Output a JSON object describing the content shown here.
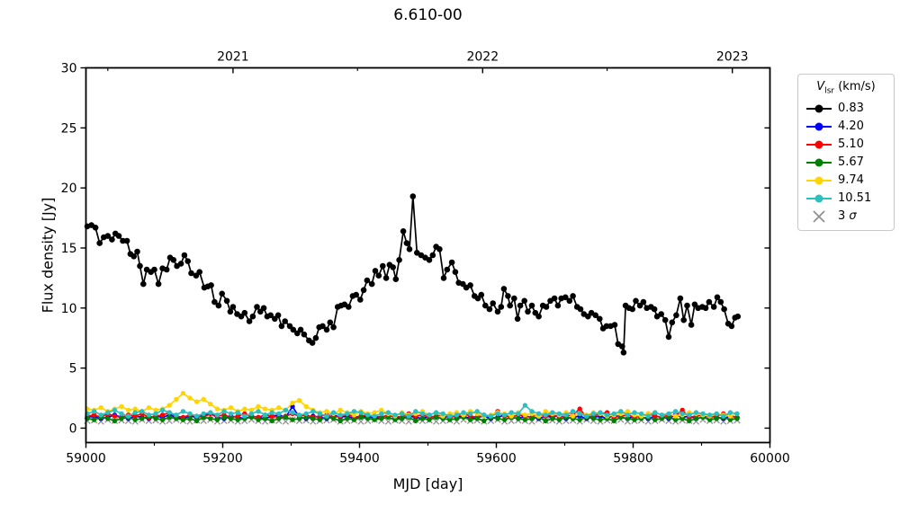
{
  "chart_data": {
    "type": "line",
    "title": "6.610-00",
    "xlabel": "MJD [day]",
    "ylabel": "Flux density [Jy]",
    "xlim": [
      59000,
      60000
    ],
    "ylim": [
      -1.2,
      30
    ],
    "grid": false,
    "x_ticks": [
      59000,
      59200,
      59400,
      59600,
      59800,
      60000
    ],
    "x_minor_ticks": [
      59100,
      59300,
      59500,
      59700,
      59900
    ],
    "y_ticks": [
      0,
      5,
      10,
      15,
      20,
      25,
      30
    ],
    "top_axis_ticks": [
      {
        "x": 59215,
        "label": "2021"
      },
      {
        "x": 59580,
        "label": "2022"
      },
      {
        "x": 59945,
        "label": "2023"
      }
    ],
    "top_axis_minor_ticks": [
      59032,
      59397,
      59762
    ],
    "legend": {
      "position": "outside-right",
      "title_var": "V",
      "title_sub": "lsr",
      "title_unit": "(km/s)",
      "sigma_prefix": "3 ",
      "sigma_symbol": "σ"
    },
    "series": [
      {
        "label": "0.83",
        "color": "#000000",
        "marker": "circle",
        "line": true,
        "z": 6,
        "x": [
          59002,
          59008,
          59014,
          59020,
          59026,
          59032,
          59038,
          59043,
          59048,
          59054,
          59060,
          59065,
          59070,
          59075,
          59079,
          59084,
          59089,
          59095,
          59100,
          59106,
          59112,
          59118,
          59123,
          59128,
          59133,
          59139,
          59144,
          59149,
          59154,
          59161,
          59166,
          59173,
          59178,
          59183,
          59188,
          59194,
          59199,
          59206,
          59211,
          59215,
          59221,
          59227,
          59232,
          59239,
          59244,
          59250,
          59255,
          59260,
          59265,
          59270,
          59276,
          59281,
          59286,
          59291,
          59298,
          59303,
          59309,
          59314,
          59319,
          59326,
          59331,
          59336,
          59341,
          59346,
          59352,
          59357,
          59362,
          59368,
          59373,
          59378,
          59384,
          59390,
          59395,
          59401,
          59406,
          59411,
          59418,
          59423,
          59428,
          59434,
          59439,
          59444,
          59449,
          59453,
          59458,
          59464,
          59469,
          59473,
          59478,
          59484,
          59490,
          59496,
          59502,
          59507,
          59512,
          59517,
          59523,
          59528,
          59535,
          59540,
          59545,
          59551,
          59556,
          59562,
          59568,
          59573,
          59578,
          59584,
          59590,
          59595,
          59602,
          59607,
          59611,
          59617,
          59620,
          59626,
          59631,
          59635,
          59641,
          59646,
          59652,
          59657,
          59662,
          59668,
          59673,
          59679,
          59685,
          59690,
          59695,
          59701,
          59707,
          59712,
          59718,
          59723,
          59728,
          59734,
          59739,
          59745,
          59751,
          59756,
          59761,
          59767,
          59773,
          59778,
          59784,
          59786,
          59789,
          59794,
          59799,
          59804,
          59810,
          59815,
          59820,
          59826,
          59831,
          59835,
          59841,
          59847,
          59852,
          59857,
          59863,
          59869,
          59874,
          59879,
          59885,
          59890,
          59895,
          59901,
          59906,
          59911,
          59918,
          59923,
          59928,
          59933,
          59939,
          59944,
          59949,
          59953
        ],
        "y": [
          16.8,
          16.9,
          16.7,
          15.4,
          15.9,
          16.0,
          15.7,
          16.2,
          16.0,
          15.6,
          15.6,
          14.5,
          14.3,
          14.7,
          13.5,
          12.0,
          13.2,
          13.0,
          13.2,
          12.0,
          13.3,
          13.2,
          14.2,
          14.0,
          13.5,
          13.7,
          14.4,
          13.9,
          12.9,
          12.7,
          13.0,
          11.7,
          11.8,
          11.9,
          10.5,
          10.2,
          11.2,
          10.6,
          9.7,
          10.1,
          9.5,
          9.3,
          9.6,
          8.9,
          9.3,
          10.1,
          9.7,
          10.0,
          9.3,
          9.4,
          9.1,
          9.4,
          8.5,
          8.9,
          8.5,
          8.2,
          7.9,
          8.2,
          7.8,
          7.3,
          7.1,
          7.5,
          8.4,
          8.5,
          8.2,
          8.8,
          8.4,
          10.1,
          10.2,
          10.3,
          10.1,
          11.0,
          11.1,
          10.7,
          11.5,
          12.3,
          12.0,
          13.1,
          12.7,
          13.5,
          12.5,
          13.6,
          13.4,
          12.4,
          14.0,
          16.4,
          15.4,
          14.9,
          19.3,
          14.6,
          14.4,
          14.2,
          14.0,
          14.4,
          15.1,
          14.9,
          12.5,
          13.2,
          13.8,
          13.0,
          12.1,
          12.0,
          11.7,
          11.9,
          11.0,
          10.8,
          11.1,
          10.2,
          9.9,
          10.4,
          9.7,
          10.1,
          11.6,
          11.0,
          10.2,
          10.8,
          9.1,
          10.2,
          10.6,
          9.7,
          10.2,
          9.6,
          9.3,
          10.2,
          10.1,
          10.6,
          10.8,
          10.2,
          10.8,
          10.9,
          10.6,
          11.0,
          10.1,
          9.9,
          9.5,
          9.3,
          9.6,
          9.4,
          9.1,
          8.3,
          8.5,
          8.5,
          8.6,
          7.0,
          6.8,
          6.3,
          10.2,
          10.0,
          9.9,
          10.6,
          10.2,
          10.5,
          10.0,
          10.1,
          9.9,
          9.3,
          9.5,
          9.0,
          7.6,
          8.8,
          9.4,
          10.8,
          9.0,
          10.2,
          8.6,
          10.3,
          10.0,
          10.1,
          10.0,
          10.5,
          10.1,
          10.9,
          10.5,
          9.9,
          8.7,
          8.5,
          9.2,
          9.3
        ]
      },
      {
        "label": "4.20",
        "color": "#0000ff",
        "marker": "circle",
        "line": true,
        "z": 1,
        "x_start": 59002,
        "x_step": 10,
        "y": [
          0.9,
          1.0,
          0.8,
          0.9,
          1.1,
          0.9,
          0.8,
          1.0,
          0.9,
          0.8,
          1.0,
          0.9,
          1.1,
          0.9,
          0.8,
          1.0,
          0.9,
          1.1,
          1.2,
          0.9,
          0.8,
          1.0,
          0.9,
          0.8,
          1.0,
          0.9,
          0.8,
          1.0,
          1.1,
          0.9,
          1.8,
          0.9,
          0.8,
          1.0,
          0.9,
          0.8,
          1.1,
          0.9,
          1.0,
          0.8,
          0.9,
          1.0,
          0.8,
          0.9,
          1.1,
          0.9,
          0.8,
          1.0,
          0.9,
          0.8,
          1.0,
          0.9,
          0.8,
          1.1,
          0.9,
          1.0,
          0.8,
          0.9,
          1.0,
          0.8,
          0.9,
          1.1,
          0.9,
          0.8,
          1.0,
          0.9,
          0.8,
          1.0,
          0.9,
          1.1,
          0.8,
          0.9,
          1.0,
          0.8,
          0.9,
          1.0,
          0.8,
          1.1,
          0.9,
          0.8,
          1.0,
          0.9,
          0.8,
          1.0,
          0.9,
          0.8,
          1.1,
          0.9,
          1.0,
          0.8,
          0.9,
          1.0,
          0.9,
          0.8,
          1.0,
          0.9
        ]
      },
      {
        "label": "5.10",
        "color": "#ff0000",
        "marker": "circle",
        "line": true,
        "z": 2,
        "x_start": 59002,
        "x_step": 10,
        "y": [
          1.0,
          1.1,
          0.9,
          1.2,
          1.0,
          0.9,
          1.1,
          1.0,
          1.2,
          0.9,
          1.0,
          1.1,
          1.3,
          1.0,
          0.9,
          1.1,
          1.0,
          0.9,
          1.2,
          1.0,
          1.1,
          0.9,
          1.0,
          1.2,
          1.0,
          0.9,
          1.1,
          1.0,
          0.9,
          1.0,
          1.2,
          1.0,
          1.1,
          0.9,
          1.0,
          1.1,
          0.9,
          1.0,
          1.2,
          0.9,
          1.0,
          1.1,
          1.0,
          0.9,
          1.1,
          1.0,
          0.9,
          1.2,
          1.0,
          1.1,
          0.9,
          1.0,
          1.1,
          0.9,
          1.0,
          1.2,
          1.0,
          0.9,
          1.1,
          1.0,
          1.4,
          1.0,
          0.9,
          1.1,
          1.0,
          0.9,
          1.2,
          1.0,
          1.1,
          0.9,
          1.0,
          1.1,
          1.6,
          0.9,
          1.0,
          1.2,
          1.3,
          0.9,
          1.0,
          1.1,
          0.9,
          1.0,
          1.2,
          1.0,
          0.9,
          1.1,
          1.0,
          1.5,
          0.9,
          1.0,
          1.1,
          0.9,
          1.0,
          1.2,
          1.0,
          0.9
        ]
      },
      {
        "label": "5.67",
        "color": "#008000",
        "marker": "circle",
        "line": true,
        "z": 3,
        "x_start": 59002,
        "x_step": 10,
        "y": [
          0.8,
          0.7,
          0.9,
          0.8,
          0.6,
          0.8,
          0.9,
          0.7,
          0.8,
          1.0,
          0.8,
          0.7,
          0.9,
          0.8,
          0.7,
          0.8,
          0.6,
          0.9,
          0.8,
          0.7,
          0.9,
          0.8,
          0.7,
          0.8,
          0.9,
          0.7,
          0.8,
          0.6,
          0.8,
          0.9,
          0.7,
          0.8,
          0.9,
          0.8,
          0.7,
          0.9,
          0.8,
          0.6,
          0.8,
          0.7,
          0.9,
          0.8,
          0.7,
          0.8,
          0.9,
          0.7,
          0.8,
          0.9,
          0.6,
          0.8,
          0.7,
          0.9,
          0.8,
          0.7,
          0.8,
          0.9,
          0.7,
          0.8,
          0.6,
          0.9,
          0.8,
          0.7,
          0.9,
          0.8,
          0.7,
          0.8,
          0.9,
          0.6,
          0.8,
          0.7,
          0.9,
          0.8,
          0.7,
          0.9,
          0.8,
          0.7,
          0.8,
          0.6,
          0.9,
          0.8,
          0.7,
          0.8,
          0.9,
          0.7,
          0.8,
          0.9,
          0.7,
          0.8,
          0.6,
          0.8,
          0.9,
          0.7,
          0.8,
          0.9,
          0.7,
          0.8
        ]
      },
      {
        "label": "9.74",
        "color": "#ffd400",
        "marker": "circle",
        "line": true,
        "z": 4,
        "x_start": 59002,
        "x_step": 10,
        "y": [
          1.6,
          1.5,
          1.7,
          1.4,
          1.6,
          1.8,
          1.5,
          1.6,
          1.4,
          1.7,
          1.5,
          1.6,
          1.9,
          2.4,
          2.9,
          2.5,
          2.2,
          2.4,
          2.0,
          1.6,
          1.5,
          1.7,
          1.4,
          1.6,
          1.5,
          1.8,
          1.6,
          1.5,
          1.7,
          1.5,
          2.1,
          2.3,
          1.8,
          1.5,
          1.3,
          1.4,
          1.2,
          1.5,
          1.3,
          1.1,
          1.4,
          1.2,
          1.3,
          1.5,
          1.2,
          1.0,
          1.3,
          1.1,
          1.2,
          1.4,
          1.1,
          1.3,
          1.0,
          1.2,
          1.3,
          1.1,
          1.4,
          1.2,
          1.0,
          1.1,
          1.3,
          1.2,
          1.0,
          1.3,
          1.1,
          1.2,
          1.0,
          1.4,
          1.2,
          1.1,
          1.3,
          1.0,
          1.2,
          1.1,
          1.3,
          1.2,
          1.0,
          1.1,
          1.2,
          1.4,
          1.1,
          1.0,
          1.2,
          1.3,
          1.1,
          1.2,
          1.0,
          1.1,
          1.3,
          1.2,
          1.1,
          1.0,
          1.2,
          1.1,
          1.0,
          1.2
        ]
      },
      {
        "label": "10.51",
        "color": "#2bbfbf",
        "marker": "circle",
        "line": true,
        "z": 5,
        "x_start": 59002,
        "x_step": 10,
        "y": [
          1.2,
          1.4,
          1.1,
          1.3,
          1.5,
          1.2,
          1.0,
          1.3,
          1.4,
          1.1,
          1.2,
          1.5,
          1.3,
          1.1,
          1.4,
          1.2,
          1.0,
          1.2,
          1.3,
          1.1,
          1.4,
          1.2,
          1.3,
          1.0,
          1.2,
          1.4,
          1.1,
          1.3,
          1.2,
          1.5,
          1.3,
          1.1,
          1.2,
          1.4,
          1.2,
          1.0,
          1.3,
          1.1,
          1.2,
          1.4,
          1.3,
          1.1,
          1.0,
          1.2,
          1.3,
          1.1,
          1.2,
          1.0,
          1.4,
          1.2,
          1.1,
          1.3,
          1.2,
          1.0,
          1.1,
          1.3,
          1.2,
          1.4,
          1.1,
          1.0,
          1.2,
          1.1,
          1.3,
          1.2,
          1.9,
          1.4,
          1.2,
          1.1,
          1.3,
          1.2,
          1.1,
          1.4,
          1.2,
          1.0,
          1.2,
          1.3,
          1.1,
          1.2,
          1.4,
          1.1,
          1.3,
          1.2,
          1.0,
          1.3,
          1.1,
          1.2,
          1.4,
          1.2,
          1.1,
          1.3,
          1.2,
          1.1,
          1.2,
          1.0,
          1.3,
          1.2
        ]
      },
      {
        "label": "3 σ",
        "color": "#909090",
        "marker": "x",
        "line": false,
        "z": 0,
        "x_start": 59002,
        "x_step": 10,
        "y": [
          0.6,
          0.65,
          0.55,
          0.7,
          0.6,
          0.65,
          0.6,
          0.55,
          0.7,
          0.6,
          0.65,
          0.55,
          0.6,
          0.7,
          0.6,
          0.55,
          0.65,
          0.6,
          0.7,
          0.55,
          0.6,
          0.65,
          0.55,
          0.6,
          0.7,
          0.6,
          0.55,
          0.65,
          0.6,
          0.55,
          0.7,
          0.6,
          0.65,
          0.55,
          0.6,
          0.65,
          0.7,
          0.55,
          0.6,
          0.65,
          0.55,
          0.6,
          0.7,
          0.6,
          0.55,
          0.65,
          0.6,
          0.55,
          0.7,
          0.6,
          0.65,
          0.55,
          0.6,
          0.65,
          0.55,
          0.7,
          0.6,
          0.65,
          0.55,
          0.6,
          0.7,
          0.55,
          0.6,
          0.65,
          0.6,
          0.55,
          0.7,
          0.6,
          0.65,
          0.55,
          0.6,
          0.65,
          0.55,
          0.7,
          0.6,
          0.55,
          0.65,
          0.6,
          0.7,
          0.55,
          0.6,
          0.65,
          0.55,
          0.6,
          0.7,
          0.6,
          0.55,
          0.65,
          0.6,
          0.55,
          0.7,
          0.6,
          0.65,
          0.55,
          0.6,
          0.65
        ]
      }
    ]
  }
}
